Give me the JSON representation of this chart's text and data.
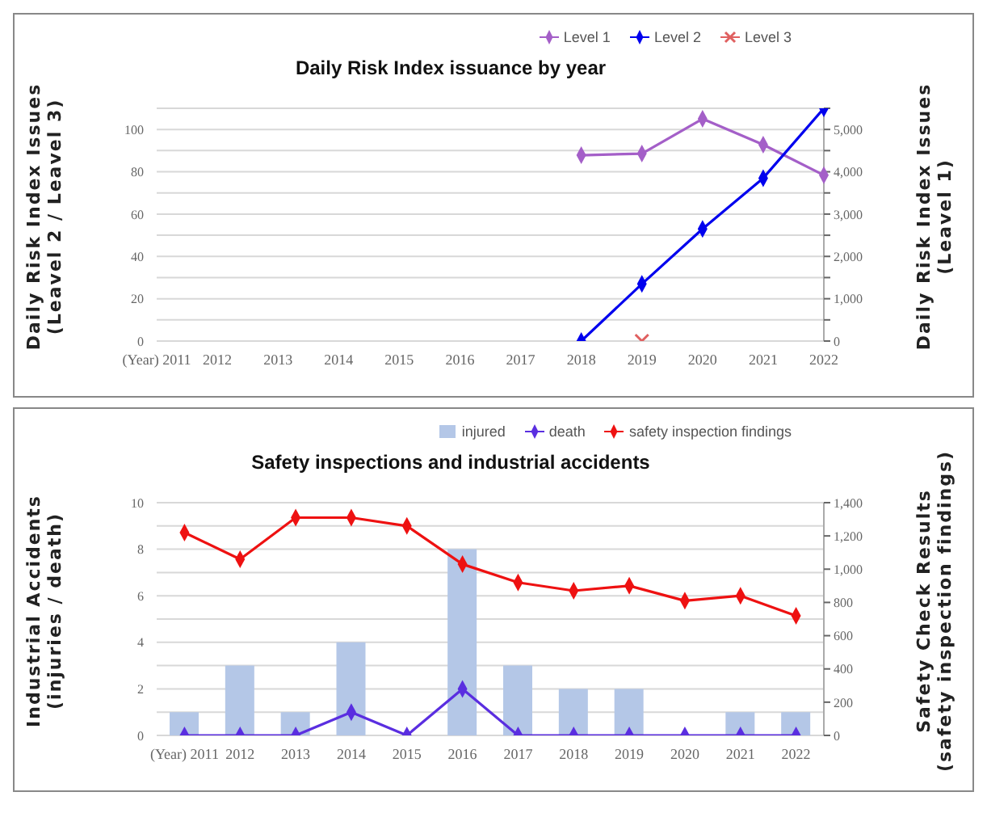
{
  "chart_data": [
    {
      "type": "line",
      "title": "Daily Risk Index issuance by year",
      "ylabel": "Daily Risk Index Issues\n(Leavel 2 / Leavel 3)",
      "y2label": "Daily Risk Index Issues\n(Leavel 1)",
      "categories": [
        "(Year) 2011",
        "2012",
        "2013",
        "2014",
        "2015",
        "2016",
        "2017",
        "2018",
        "2019",
        "2020",
        "2021",
        "2022"
      ],
      "series": [
        {
          "name": "Level 1",
          "color": "#a45fc8",
          "axis": "y2",
          "values": [
            null,
            null,
            null,
            null,
            null,
            null,
            null,
            4390,
            4430,
            5250,
            4640,
            3920
          ]
        },
        {
          "name": "Level 2",
          "color": "#0000ee",
          "values": [
            null,
            null,
            null,
            null,
            null,
            null,
            null,
            0,
            27,
            53,
            77,
            110
          ]
        },
        {
          "name": "Level 3",
          "color": "#e06060",
          "marker": "cross",
          "values": [
            null,
            null,
            null,
            null,
            null,
            null,
            null,
            null,
            0,
            null,
            null,
            null
          ]
        }
      ],
      "ylim": [
        0,
        110
      ],
      "yticks": [
        0,
        {
          "value": 10,
          "label": null
        },
        20,
        {
          "value": 30,
          "label": null
        },
        40,
        {
          "value": 50,
          "label": null
        },
        60,
        {
          "value": 70,
          "label": null
        },
        80,
        {
          "value": 90,
          "label": null
        },
        100,
        {
          "value": 110,
          "label": null
        }
      ],
      "y2lim": [
        0,
        5500
      ],
      "y2ticks": [
        0,
        {
          "value": 500,
          "label": null
        },
        {
          "value": 1000,
          "label": "1,000"
        },
        {
          "value": 1500,
          "label": null
        },
        {
          "value": 2000,
          "label": "2,000"
        },
        {
          "value": 2500,
          "label": null
        },
        {
          "value": 3000,
          "label": "3,000"
        },
        {
          "value": 3500,
          "label": null
        },
        {
          "value": 4000,
          "label": "4,000"
        },
        {
          "value": 4500,
          "label": null
        },
        {
          "value": 5000,
          "label": "5,000"
        },
        {
          "value": 5500,
          "label": null
        }
      ],
      "grid": "y",
      "legend": "top right",
      "marker": "diamond"
    },
    {
      "type": "line",
      "title": "Safety inspections and industrial accidents",
      "ylabel": "Industrial Accidents\n(injuries / death)",
      "y2label": "Safety Check Results\n(safety inspection findings)",
      "categories": [
        "(Year) 2011",
        "2012",
        "2013",
        "2014",
        "2015",
        "2016",
        "2017",
        "2018",
        "2019",
        "2020",
        "2021",
        "2022"
      ],
      "series": [
        {
          "name": "injured",
          "type": "bar",
          "color": "#b4c7e7",
          "values": [
            1,
            3,
            1,
            4,
            0,
            8,
            3,
            2,
            2,
            0,
            1,
            1
          ]
        },
        {
          "name": "death",
          "color": "#5a2ee0",
          "values": [
            0,
            0,
            0,
            1,
            0,
            2,
            0,
            0,
            0,
            0,
            0,
            0
          ]
        },
        {
          "name": "safety inspection findings",
          "color": "#ee1111",
          "axis": "y2",
          "values": [
            1220,
            1060,
            1310,
            1310,
            1260,
            1030,
            920,
            870,
            900,
            810,
            840,
            720
          ]
        }
      ],
      "ylim": [
        0,
        10
      ],
      "yticks": [
        0,
        {
          "value": 1,
          "label": null
        },
        2,
        {
          "value": 3,
          "label": null
        },
        4,
        {
          "value": 5,
          "label": null
        },
        6,
        {
          "value": 7,
          "label": null
        },
        8,
        {
          "value": 9,
          "label": null
        },
        10
      ],
      "y2lim": [
        0,
        1400
      ],
      "y2ticks": [
        0,
        200,
        400,
        600,
        800,
        {
          "value": 1000,
          "label": "1,000"
        },
        {
          "value": 1200,
          "label": "1,200"
        },
        {
          "value": 1400,
          "label": "1,400"
        }
      ],
      "grid": "y",
      "legend": "top right",
      "marker": "diamond"
    }
  ]
}
